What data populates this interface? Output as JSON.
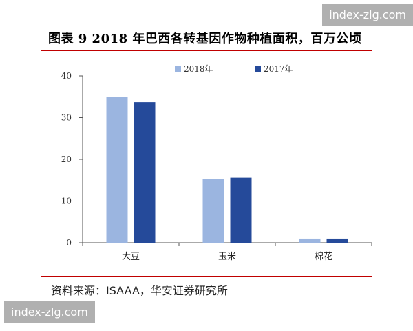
{
  "title": "图表 9 2018 年巴西各转基因作物种植面积，百万公顷",
  "source": "资料来源：ISAAA，华安证券研究所",
  "watermarks": {
    "top": "index-zlg.com",
    "bottom": "index-zlg.com"
  },
  "colors": {
    "title_rule": "#c00000",
    "series_2018": "#9bb5e0",
    "series_2017": "#254a9a"
  },
  "chart_data": {
    "type": "bar",
    "categories": [
      "大豆",
      "玉米",
      "棉花"
    ],
    "series": [
      {
        "name": "2018年",
        "values": [
          34.9,
          15.3,
          1.0
        ]
      },
      {
        "name": "2017年",
        "values": [
          33.7,
          15.6,
          1.0
        ]
      }
    ],
    "yticks": [
      0,
      10,
      20,
      30,
      40
    ],
    "ylim": [
      0,
      40
    ],
    "legend_position": "top",
    "grid": false
  }
}
